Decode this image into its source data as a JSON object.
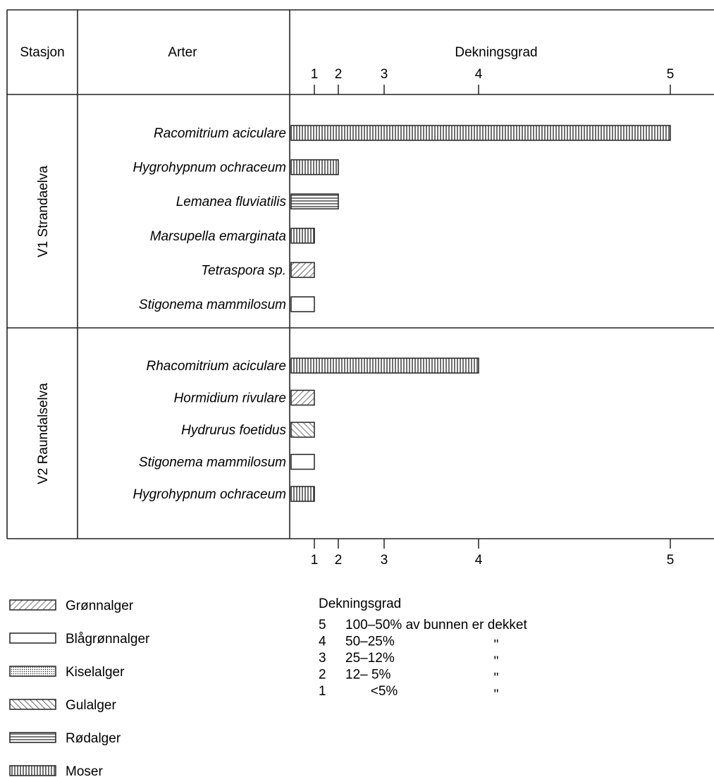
{
  "chart_data": {
    "type": "bar",
    "orientation": "horizontal",
    "column_headers": {
      "station": "Stasjon",
      "species": "Arter",
      "scale": "Dekningsgrad"
    },
    "x_ticks": [
      "1",
      "2",
      "3",
      "4",
      "5"
    ],
    "xlim": [
      1,
      5
    ],
    "groups": [
      {
        "station": "V1 Strandaelva",
        "bars": [
          {
            "species": "Racomitrium aciculare",
            "value": 5,
            "category": "Moser"
          },
          {
            "species": "Hygrohypnum ochraceum",
            "value": 2,
            "category": "Moser"
          },
          {
            "species": "Lemanea fluviatilis",
            "value": 2,
            "category": "Rødalger"
          },
          {
            "species": "Marsupella emarginata",
            "value": 1,
            "category": "Moser"
          },
          {
            "species": "Tetraspora sp.",
            "value": 1,
            "category": "Grønnalger"
          },
          {
            "species": "Stigonema mammilosum",
            "value": 1,
            "category": "Blågrønnalger"
          }
        ]
      },
      {
        "station": "V2 Raundalselva",
        "bars": [
          {
            "species": "Rhacomitrium aciculare",
            "value": 4,
            "category": "Moser"
          },
          {
            "species": "Hormidium rivulare",
            "value": 1,
            "category": "Grønnalger"
          },
          {
            "species": "Hydrurus foetidus",
            "value": 1,
            "category": "Gulalger"
          },
          {
            "species": "Stigonema mammilosum",
            "value": 1,
            "category": "Blågrønnalger"
          },
          {
            "species": "Hygrohypnum ochraceum",
            "value": 1,
            "category": "Moser"
          }
        ]
      }
    ],
    "legend": [
      {
        "label": "Grønnalger",
        "pattern": "diagonal"
      },
      {
        "label": "Blågrønnalger",
        "pattern": "blank"
      },
      {
        "label": "Kiselalger",
        "pattern": "dotted"
      },
      {
        "label": "Gulalger",
        "pattern": "backdiagonal"
      },
      {
        "label": "Rødalger",
        "pattern": "horizontal"
      },
      {
        "label": "Moser",
        "pattern": "vertical"
      }
    ],
    "key": {
      "title": "Dekningsgrad",
      "rows": [
        {
          "level": "5",
          "range": "100–50% av bunnen er dekket",
          "ditto": ""
        },
        {
          "level": "4",
          "range": "50–25%",
          "ditto": "\""
        },
        {
          "level": "3",
          "range": "25–12%",
          "ditto": "\""
        },
        {
          "level": "2",
          "range": "12– 5%",
          "ditto": "\""
        },
        {
          "level": "1",
          "range": "<5%",
          "ditto": "\""
        }
      ]
    }
  }
}
